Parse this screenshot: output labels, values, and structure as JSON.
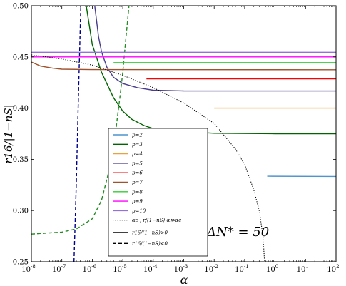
{
  "chart_data": {
    "type": "line",
    "xscale": "log",
    "xlim": [
      1e-08,
      100
    ],
    "ylim": [
      0.25,
      0.5
    ],
    "xlabel": "α",
    "ylabel": "r16/|1−nS|",
    "xticks": [
      {
        "value": 1e-08,
        "base": "10",
        "exp": "-8"
      },
      {
        "value": 1e-07,
        "base": "10",
        "exp": "-7"
      },
      {
        "value": 1e-06,
        "base": "10",
        "exp": "-6"
      },
      {
        "value": 1e-05,
        "base": "10",
        "exp": "-5"
      },
      {
        "value": 0.0001,
        "base": "10",
        "exp": "-4"
      },
      {
        "value": 0.001,
        "base": "10",
        "exp": "-3"
      },
      {
        "value": 0.01,
        "base": "10",
        "exp": "-2"
      },
      {
        "value": 0.1,
        "base": "10",
        "exp": "-1"
      },
      {
        "value": 1,
        "base": "10",
        "exp": "0"
      },
      {
        "value": 10,
        "base": "10",
        "exp": "1"
      },
      {
        "value": 100,
        "base": "10",
        "exp": "2"
      }
    ],
    "yticks": [
      {
        "value": 0.25,
        "label": "0.25"
      },
      {
        "value": 0.3,
        "label": "0.30"
      },
      {
        "value": 0.35,
        "label": "0.35"
      },
      {
        "value": 0.4,
        "label": "0.40"
      },
      {
        "value": 0.45,
        "label": "0.45"
      },
      {
        "value": 0.5,
        "label": "0.50"
      }
    ],
    "annotation": "ΔN* = 50",
    "series": [
      {
        "name": "p=2",
        "color": "#4f94cd",
        "style": "solid",
        "points": [
          [
            0.55,
            0.3335
          ],
          [
            100,
            0.3333
          ]
        ]
      },
      {
        "name": "p=3",
        "color": "#006400",
        "style": "solid",
        "points": [
          [
            6.31e-07,
            0.5
          ],
          [
            1e-06,
            0.462
          ],
          [
            2e-06,
            0.435
          ],
          [
            5e-06,
            0.41
          ],
          [
            1e-05,
            0.397
          ],
          [
            2e-05,
            0.389
          ],
          [
            5e-05,
            0.383
          ],
          [
            0.0001,
            0.38
          ],
          [
            0.001,
            0.377
          ],
          [
            0.01,
            0.3755
          ],
          [
            1,
            0.375
          ],
          [
            100,
            0.375
          ]
        ]
      },
      {
        "name": "p=3",
        "color": "#228b22",
        "style": "dashed",
        "points": [
          [
            1e-08,
            0.277
          ],
          [
            1e-07,
            0.279
          ],
          [
            3e-07,
            0.282
          ],
          [
            1e-06,
            0.292
          ],
          [
            2e-06,
            0.31
          ],
          [
            4e-06,
            0.345
          ],
          [
            6e-06,
            0.38
          ],
          [
            8e-06,
            0.41
          ],
          [
            1e-05,
            0.435
          ],
          [
            1.15e-05,
            0.455
          ],
          [
            1.6e-05,
            0.5
          ]
        ]
      },
      {
        "name": "p=4",
        "color": "#e8a33d",
        "style": "solid",
        "points": [
          [
            0.01,
            0.4
          ],
          [
            100,
            0.4
          ]
        ]
      },
      {
        "name": "p=5",
        "color": "#483d8b",
        "style": "solid",
        "points": [
          [
            1.2e-06,
            0.5
          ],
          [
            1.6e-06,
            0.47
          ],
          [
            2e-06,
            0.455
          ],
          [
            3e-06,
            0.44
          ],
          [
            5e-06,
            0.43
          ],
          [
            1e-05,
            0.424
          ],
          [
            3e-05,
            0.42
          ],
          [
            0.0001,
            0.4175
          ],
          [
            0.001,
            0.4168
          ],
          [
            100,
            0.4167
          ]
        ]
      },
      {
        "name": "p=5",
        "color": "#00008b",
        "style": "dashed",
        "points": [
          [
            2.5e-07,
            0.25
          ],
          [
            3e-07,
            0.33
          ],
          [
            3.5e-07,
            0.41
          ],
          [
            4.2e-07,
            0.5
          ]
        ]
      },
      {
        "name": "p=6",
        "color": "#ff0000",
        "style": "solid",
        "points": [
          [
            6e-05,
            0.4286
          ],
          [
            100,
            0.4286
          ]
        ]
      },
      {
        "name": "p=7",
        "color": "#a0522d",
        "style": "solid",
        "points": [
          [
            1e-08,
            0.445
          ],
          [
            2e-08,
            0.441
          ],
          [
            5e-08,
            0.439
          ],
          [
            1e-07,
            0.438
          ],
          [
            1e-06,
            0.4376
          ],
          [
            100,
            0.4375
          ]
        ]
      },
      {
        "name": "p=8",
        "color": "#32cd32",
        "style": "solid",
        "points": [
          [
            5e-06,
            0.4444
          ],
          [
            100,
            0.4444
          ]
        ]
      },
      {
        "name": "p=9",
        "color": "#ff00ff",
        "style": "solid",
        "points": [
          [
            1e-08,
            0.45
          ],
          [
            100,
            0.45
          ]
        ]
      },
      {
        "name": "p=10",
        "color": "#9370db",
        "style": "solid",
        "points": [
          [
            1e-08,
            0.4545
          ],
          [
            100,
            0.4545
          ]
        ]
      },
      {
        "name": "αc , r/(1−nS)|α≫αc",
        "color": "#000000",
        "style": "dotted",
        "points": [
          [
            1e-08,
            0.452
          ],
          [
            1e-07,
            0.448
          ],
          [
            1e-06,
            0.442
          ],
          [
            1e-05,
            0.432
          ],
          [
            0.0001,
            0.42
          ],
          [
            0.001,
            0.405
          ],
          [
            0.01,
            0.385
          ],
          [
            0.05,
            0.36
          ],
          [
            0.1,
            0.345
          ],
          [
            0.2,
            0.32
          ],
          [
            0.3,
            0.3
          ],
          [
            0.4,
            0.275
          ],
          [
            0.45,
            0.25
          ]
        ]
      }
    ],
    "legend": {
      "position": "center",
      "items": [
        {
          "label": "p=2",
          "color": "#4f94cd",
          "style": "solid"
        },
        {
          "label": "p=3",
          "color": "#006400",
          "style": "solid"
        },
        {
          "label": "p=4",
          "color": "#e8a33d",
          "style": "solid"
        },
        {
          "label": "p=5",
          "color": "#483d8b",
          "style": "solid"
        },
        {
          "label": "p=6",
          "color": "#ff0000",
          "style": "solid"
        },
        {
          "label": "p=7",
          "color": "#a0522d",
          "style": "solid"
        },
        {
          "label": "p=8",
          "color": "#32cd32",
          "style": "solid"
        },
        {
          "label": "p=9",
          "color": "#ff00ff",
          "style": "solid"
        },
        {
          "label": "p=10",
          "color": "#9370db",
          "style": "solid"
        },
        {
          "label": "αc , r/(1−nS)|α≫αc",
          "color": "#000000",
          "style": "dotted"
        },
        {
          "label": "r16/(1−nS)>0",
          "color": "#000000",
          "style": "solid"
        },
        {
          "label": "r16/(1−nS)<0",
          "color": "#000000",
          "style": "dashed"
        }
      ]
    }
  }
}
